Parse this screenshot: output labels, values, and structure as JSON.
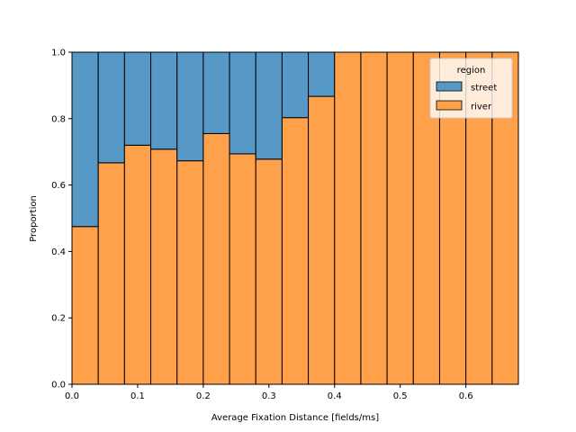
{
  "chart_data": {
    "type": "bar",
    "stacked": true,
    "normalized": true,
    "xlabel": "Average Fixation Distance [fields/ms]",
    "ylabel": "Proportion",
    "xlim": [
      0.0,
      0.68
    ],
    "ylim": [
      0.0,
      1.0
    ],
    "bin_width": 0.04,
    "bin_starts": [
      0.0,
      0.04,
      0.08,
      0.12,
      0.16,
      0.2,
      0.24,
      0.28,
      0.32,
      0.36,
      0.4,
      0.44,
      0.48,
      0.52,
      0.56,
      0.6,
      0.64
    ],
    "xticks": [
      0.0,
      0.1,
      0.2,
      0.3,
      0.4,
      0.5,
      0.6
    ],
    "xtick_labels": [
      "0.0",
      "0.1",
      "0.2",
      "0.3",
      "0.4",
      "0.5",
      "0.6"
    ],
    "yticks": [
      0.0,
      0.2,
      0.4,
      0.6,
      0.8,
      1.0
    ],
    "ytick_labels": [
      "0.0",
      "0.2",
      "0.4",
      "0.6",
      "0.8",
      "1.0"
    ],
    "series": [
      {
        "name": "river",
        "color": "#ffa04a",
        "values": [
          0.475,
          0.667,
          0.72,
          0.708,
          0.673,
          0.755,
          0.694,
          0.678,
          0.803,
          0.867,
          1.0,
          1.0,
          1.0,
          1.0,
          1.0,
          1.0,
          1.0
        ]
      },
      {
        "name": "street",
        "color": "#5799c6",
        "values": [
          0.525,
          0.333,
          0.28,
          0.292,
          0.327,
          0.245,
          0.306,
          0.322,
          0.197,
          0.133,
          0.0,
          0.0,
          0.0,
          0.0,
          0.0,
          0.0,
          0.0
        ]
      }
    ],
    "legend": {
      "title": "region",
      "placement": "top-right",
      "entries": [
        {
          "label": "street",
          "color": "#5799c6"
        },
        {
          "label": "river",
          "color": "#ffa04a"
        }
      ]
    },
    "grid": false
  }
}
